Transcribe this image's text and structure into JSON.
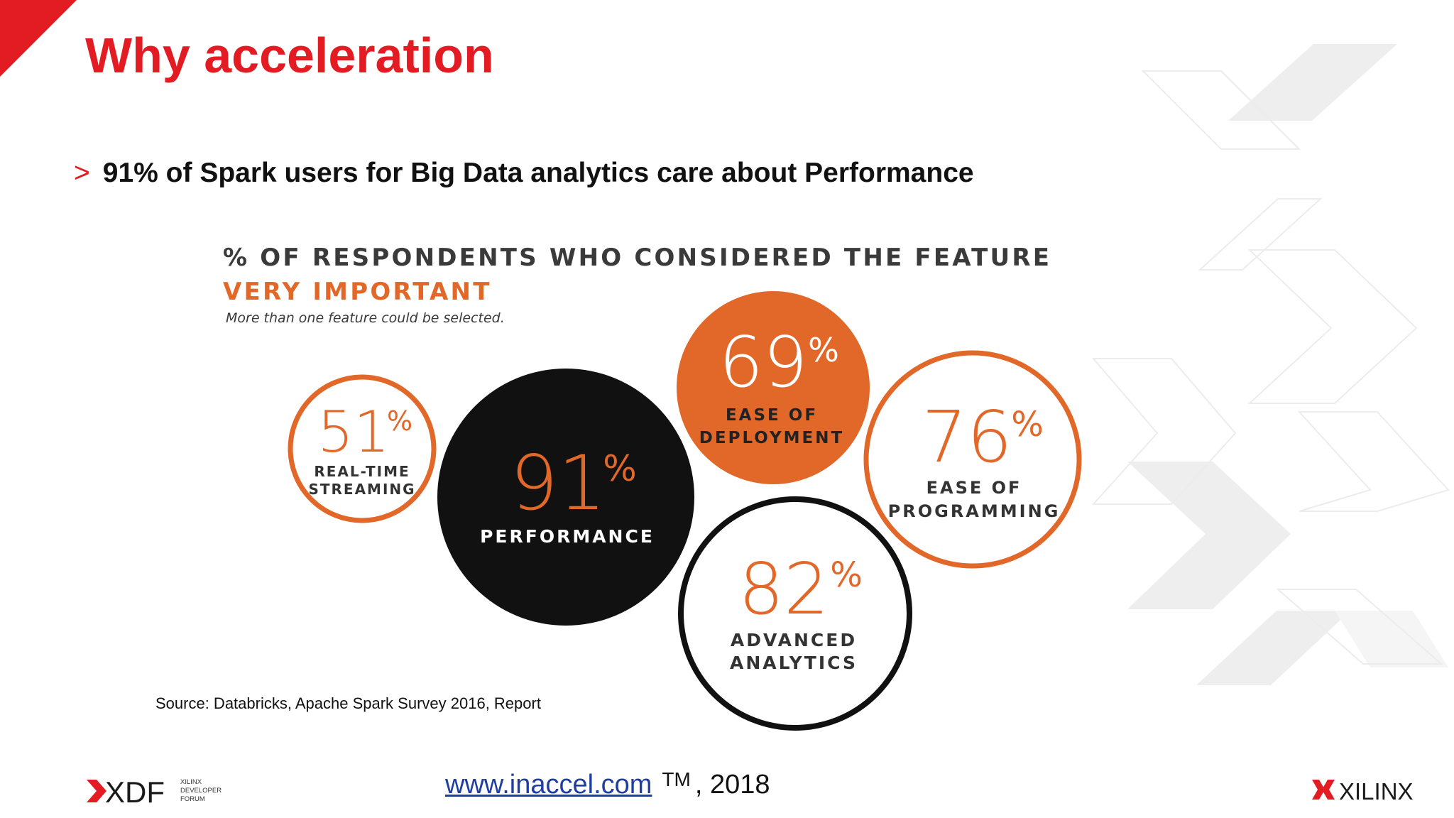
{
  "slide": {
    "title": "Why acceleration",
    "bullet_marker": ">",
    "bullet_text": "91% of Spark users for Big Data analytics care about Performance"
  },
  "infographic": {
    "heading": "% OF RESPONDENTS WHO CONSIDERED THE FEATURE",
    "subheading": "VERY IMPORTANT",
    "note": "More than one feature could be selected.",
    "bubbles": [
      {
        "id": "real-time-streaming",
        "value": "51",
        "unit": "%",
        "line1": "REAL-TIME",
        "line2": "STREAMING",
        "style": "outline-orange"
      },
      {
        "id": "performance",
        "value": "91",
        "unit": "%",
        "line1": "PERFORMANCE",
        "line2": "",
        "style": "filled-black"
      },
      {
        "id": "ease-of-deployment",
        "value": "69",
        "unit": "%",
        "line1": "EASE OF",
        "line2": "DEPLOYMENT",
        "style": "filled-orange"
      },
      {
        "id": "ease-of-programming",
        "value": "76",
        "unit": "%",
        "line1": "EASE OF",
        "line2": "PROGRAMMING",
        "style": "outline-orange"
      },
      {
        "id": "advanced-analytics",
        "value": "82",
        "unit": "%",
        "line1": "ADVANCED",
        "line2": "ANALYTICS",
        "style": "outline-black"
      }
    ]
  },
  "source_text": "Source: Databricks, Apache Spark Survey 2016, Report",
  "footer": {
    "link_text": "www.inaccel.com",
    "trademark": "TM",
    "year_text": ", 2018"
  },
  "logos": {
    "xdf_text": "XDF",
    "xdf_sub1": "XILINX",
    "xdf_sub2": "DEVELOPER",
    "xdf_sub3": "FORUM",
    "xilinx_text": "XILINX"
  },
  "colors": {
    "brand_red": "#e31b23",
    "orange": "#e2682a",
    "black": "#111111",
    "text_dark": "#3a3a3a",
    "link_blue": "#1f3fa0"
  }
}
